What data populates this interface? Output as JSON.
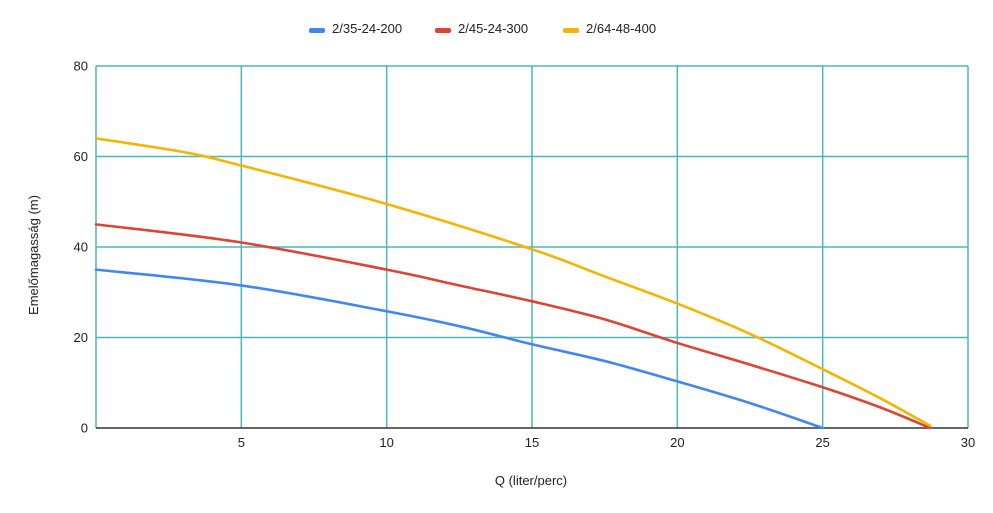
{
  "chart_data": {
    "type": "line",
    "title": "",
    "xlabel": "Q (liter/perc)",
    "ylabel": "Emelőmagasság (m)",
    "xlim": [
      0,
      30
    ],
    "ylim": [
      0,
      80
    ],
    "x_ticks": [
      5,
      10,
      15,
      20,
      25,
      30
    ],
    "y_ticks": [
      0,
      20,
      40,
      60,
      80
    ],
    "grid": true,
    "grid_color": "#4db6bd",
    "legend_position": "top-center",
    "series": [
      {
        "name": "2/35-24-200",
        "color": "#4285f4",
        "points": [
          [
            0,
            35
          ],
          [
            5,
            31.5
          ],
          [
            10,
            25.8
          ],
          [
            12.5,
            22.5
          ],
          [
            15,
            18.5
          ],
          [
            17.5,
            14.8
          ],
          [
            20,
            10.3
          ],
          [
            22.5,
            5.5
          ],
          [
            25,
            0
          ]
        ]
      },
      {
        "name": "2/45-24-300",
        "color": "#db4437",
        "points": [
          [
            0,
            45
          ],
          [
            5,
            41
          ],
          [
            10,
            35
          ],
          [
            12.5,
            31.5
          ],
          [
            15,
            28
          ],
          [
            17.5,
            24
          ],
          [
            20,
            18.8
          ],
          [
            22.5,
            14
          ],
          [
            25,
            9
          ],
          [
            27,
            4.5
          ],
          [
            28.7,
            0
          ]
        ]
      },
      {
        "name": "2/64-48-400",
        "color": "#f4b400",
        "points": [
          [
            0,
            64
          ],
          [
            3,
            61
          ],
          [
            5,
            58
          ],
          [
            10,
            49.5
          ],
          [
            15,
            39.5
          ],
          [
            17.5,
            33.5
          ],
          [
            20,
            27.5
          ],
          [
            22.5,
            20.8
          ],
          [
            25,
            13
          ],
          [
            27,
            6.5
          ],
          [
            28.7,
            0.5
          ]
        ]
      }
    ]
  }
}
